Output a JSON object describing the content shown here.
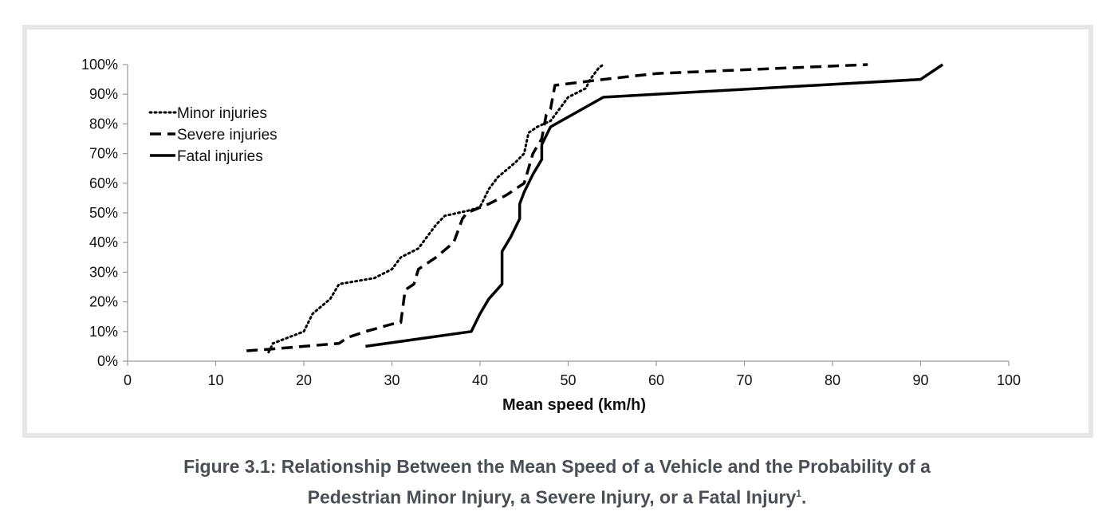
{
  "chart_data": {
    "type": "line",
    "xlabel": "Mean speed (km/h)",
    "ylabel": "",
    "xlim": [
      0,
      100
    ],
    "ylim": [
      0,
      100
    ],
    "x_ticks": [
      "0",
      "10",
      "20",
      "30",
      "40",
      "50",
      "60",
      "70",
      "80",
      "90",
      "100"
    ],
    "y_ticks": [
      "0%",
      "10%",
      "20%",
      "30%",
      "40%",
      "50%",
      "60%",
      "70%",
      "80%",
      "90%",
      "100%"
    ],
    "grid": false,
    "legend_position": "top-left",
    "series": [
      {
        "name": "Minor injuries",
        "style": "dotted",
        "points": [
          [
            16,
            3
          ],
          [
            16.5,
            6
          ],
          [
            20,
            10
          ],
          [
            21,
            16
          ],
          [
            23,
            21
          ],
          [
            24,
            26
          ],
          [
            28,
            28
          ],
          [
            30,
            31
          ],
          [
            31,
            35
          ],
          [
            33,
            38
          ],
          [
            35,
            46
          ],
          [
            36,
            49
          ],
          [
            39,
            51
          ],
          [
            40,
            52
          ],
          [
            41,
            58
          ],
          [
            42,
            62
          ],
          [
            44,
            67
          ],
          [
            45,
            70
          ],
          [
            45.5,
            77
          ],
          [
            46.5,
            79
          ],
          [
            48,
            81
          ],
          [
            49,
            85
          ],
          [
            50,
            89
          ],
          [
            52,
            92
          ],
          [
            52.5,
            95
          ],
          [
            53.5,
            99
          ],
          [
            54,
            100
          ]
        ]
      },
      {
        "name": "Severe injuries",
        "style": "dashed",
        "points": [
          [
            13.5,
            3.5
          ],
          [
            16,
            4
          ],
          [
            20,
            5
          ],
          [
            24,
            6
          ],
          [
            25,
            8
          ],
          [
            27,
            10
          ],
          [
            30,
            12.5
          ],
          [
            31,
            13
          ],
          [
            31.5,
            24
          ],
          [
            32.5,
            26
          ],
          [
            33,
            31
          ],
          [
            35,
            35
          ],
          [
            37,
            40
          ],
          [
            38,
            48
          ],
          [
            38.5,
            50
          ],
          [
            41,
            53
          ],
          [
            43,
            56
          ],
          [
            44,
            58
          ],
          [
            45,
            60
          ],
          [
            45.5,
            65
          ],
          [
            46,
            70
          ],
          [
            47,
            75
          ],
          [
            47.5,
            83
          ],
          [
            48,
            85
          ],
          [
            48.5,
            93
          ],
          [
            54,
            95
          ],
          [
            60,
            97
          ],
          [
            84,
            100
          ]
        ]
      },
      {
        "name": "Fatal injuries",
        "style": "solid",
        "points": [
          [
            27,
            5
          ],
          [
            39,
            10
          ],
          [
            40,
            16
          ],
          [
            41,
            21
          ],
          [
            42.5,
            26
          ],
          [
            42.5,
            37
          ],
          [
            43.5,
            42
          ],
          [
            44.5,
            48
          ],
          [
            44.5,
            53
          ],
          [
            45,
            57
          ],
          [
            46,
            63
          ],
          [
            47,
            68
          ],
          [
            47,
            73
          ],
          [
            48,
            79
          ],
          [
            54,
            89
          ],
          [
            90,
            95
          ],
          [
            92.5,
            100
          ]
        ]
      }
    ]
  },
  "caption": {
    "line1": "Figure 3.1: Relationship Between the Mean Speed of a Vehicle and the Probability of a",
    "line2": "Pedestrian Minor Injury, a Severe Injury, or a Fatal Injury",
    "footnote": "1",
    "line2_end": "."
  }
}
